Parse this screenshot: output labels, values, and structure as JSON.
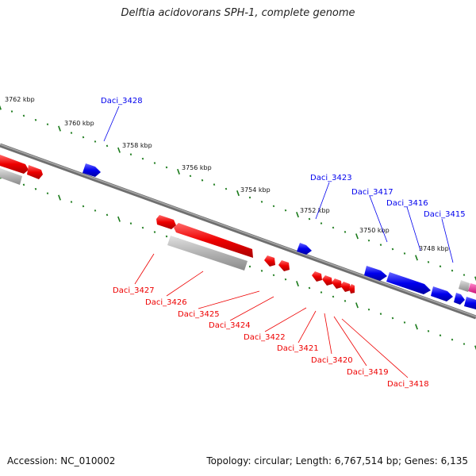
{
  "title": "Delftia acidovorans SPH-1, complete genome",
  "accession": "Accession: NC_010002",
  "summary": "Topology: circular; Length: 6,767,514 bp; Genes: 6,135",
  "colors": {
    "forward": "#0000ee",
    "reverse": "#ee0000",
    "pseudo": "#b3b3b3",
    "other": "#ff33aa",
    "backbone": "#7f7f7f",
    "ticks": "#1a7a1a"
  },
  "scale_labels": [
    "3762 kbp",
    "3760 kbp",
    "3758 kbp",
    "3756 kbp",
    "3754 kbp",
    "3752 kbp",
    "3750 kbp",
    "3748 kbp"
  ],
  "forward_genes": [
    "Daci_3428",
    "Daci_3423",
    "Daci_3417",
    "Daci_3416",
    "Daci_3415"
  ],
  "reverse_genes": [
    "Daci_3427",
    "Daci_3426",
    "Daci_3425",
    "Daci_3424",
    "Daci_3422",
    "Daci_3421",
    "Daci_3420",
    "Daci_3419",
    "Daci_3418"
  ]
}
